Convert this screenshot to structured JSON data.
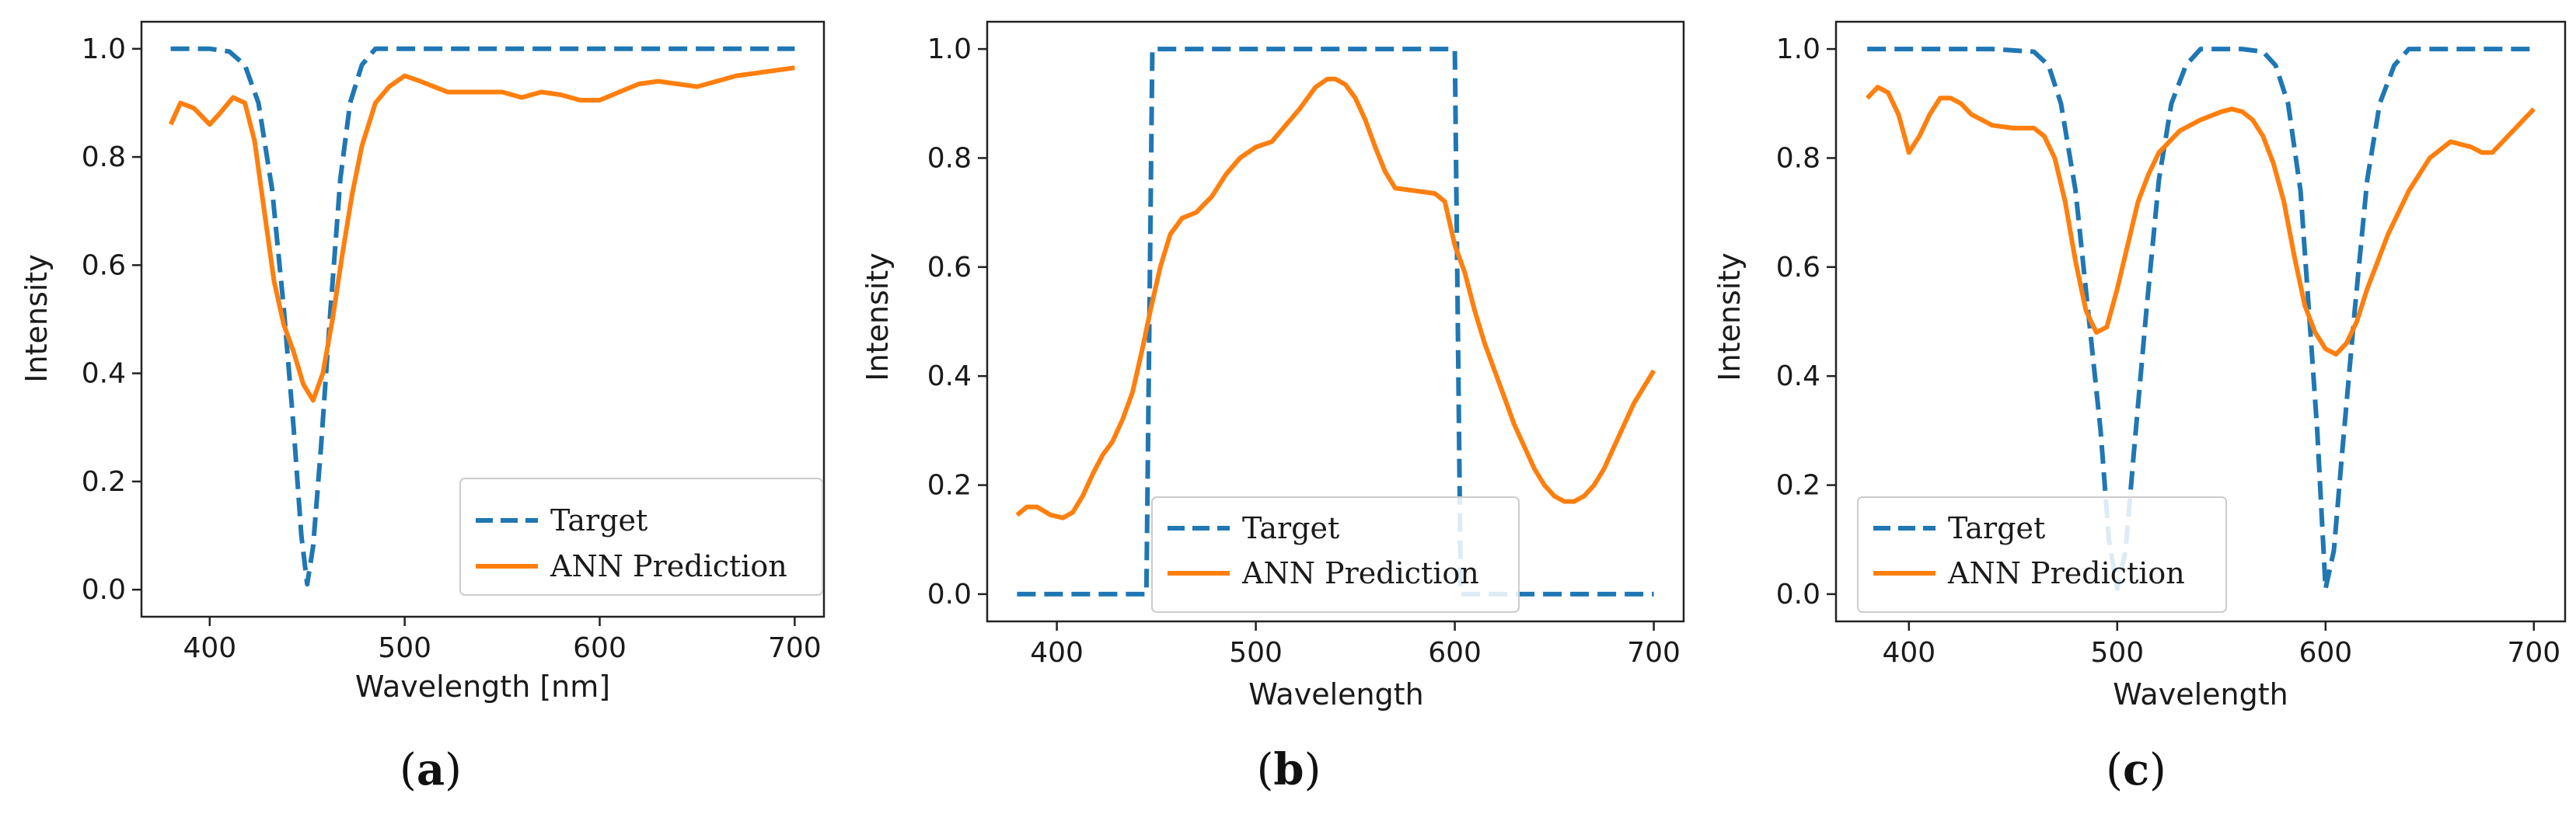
{
  "colors": {
    "target": "#1f77b4",
    "prediction": "#ff7f0e",
    "axis": "#222222"
  },
  "chart_data": [
    {
      "type": "line",
      "panel_letter": "a",
      "xlabel": "Wavelength [nm]",
      "ylabel": "Intensity",
      "xlim": [
        365,
        715
      ],
      "ylim": [
        -0.05,
        1.05
      ],
      "xticks": [
        400,
        500,
        600,
        700
      ],
      "yticks": [
        0.0,
        0.2,
        0.4,
        0.6,
        0.8,
        1.0
      ],
      "xtick_labels": [
        "400",
        "500",
        "600",
        "700"
      ],
      "ytick_labels": [
        "0.0",
        "0.2",
        "0.4",
        "0.6",
        "0.8",
        "1.0"
      ],
      "legend_position": "lower-right",
      "series": [
        {
          "name": "Target",
          "style": "dashed",
          "x": [
            380,
            400,
            410,
            418,
            425,
            432,
            438,
            443,
            447,
            450,
            453,
            457,
            462,
            467,
            472,
            478,
            485,
            500,
            550,
            600,
            650,
            700
          ],
          "y": [
            1.0,
            1.0,
            0.995,
            0.97,
            0.9,
            0.74,
            0.52,
            0.3,
            0.1,
            0.01,
            0.08,
            0.26,
            0.52,
            0.76,
            0.9,
            0.97,
            1.0,
            1.0,
            1.0,
            1.0,
            1.0,
            1.0
          ]
        },
        {
          "name": "ANN Prediction",
          "style": "solid",
          "x": [
            380,
            385,
            392,
            400,
            405,
            412,
            418,
            423,
            428,
            433,
            438,
            443,
            448,
            453,
            458,
            463,
            468,
            473,
            478,
            485,
            492,
            500,
            508,
            515,
            522,
            530,
            540,
            550,
            560,
            570,
            580,
            590,
            600,
            610,
            620,
            630,
            640,
            650,
            660,
            670,
            680,
            690,
            700
          ],
          "y": [
            0.86,
            0.9,
            0.89,
            0.86,
            0.88,
            0.91,
            0.9,
            0.83,
            0.7,
            0.57,
            0.49,
            0.44,
            0.38,
            0.35,
            0.4,
            0.5,
            0.62,
            0.73,
            0.82,
            0.9,
            0.93,
            0.95,
            0.94,
            0.93,
            0.92,
            0.92,
            0.92,
            0.92,
            0.91,
            0.92,
            0.915,
            0.905,
            0.905,
            0.92,
            0.935,
            0.94,
            0.935,
            0.93,
            0.94,
            0.95,
            0.955,
            0.96,
            0.965
          ]
        }
      ]
    },
    {
      "type": "line",
      "panel_letter": "b",
      "xlabel": "Wavelength",
      "ylabel": "Intensity",
      "xlim": [
        365,
        715
      ],
      "ylim": [
        -0.05,
        1.05
      ],
      "xticks": [
        400,
        500,
        600,
        700
      ],
      "yticks": [
        0.0,
        0.2,
        0.4,
        0.6,
        0.8,
        1.0
      ],
      "xtick_labels": [
        "400",
        "500",
        "600",
        "700"
      ],
      "ytick_labels": [
        "0.0",
        "0.2",
        "0.4",
        "0.6",
        "0.8",
        "1.0"
      ],
      "legend_position": "lower-center",
      "series": [
        {
          "name": "Target",
          "style": "dashed",
          "x": [
            380,
            445,
            448,
            600,
            603,
            700
          ],
          "y": [
            0.0,
            0.0,
            1.0,
            1.0,
            0.0,
            0.0
          ]
        },
        {
          "name": "ANN Prediction",
          "style": "solid",
          "x": [
            380,
            385,
            390,
            397,
            403,
            408,
            413,
            418,
            423,
            428,
            433,
            438,
            443,
            447,
            452,
            457,
            463,
            470,
            478,
            485,
            492,
            500,
            508,
            515,
            522,
            530,
            536,
            540,
            545,
            550,
            555,
            560,
            565,
            570,
            580,
            590,
            595,
            600,
            605,
            610,
            615,
            620,
            625,
            630,
            635,
            640,
            645,
            650,
            655,
            660,
            665,
            670,
            675,
            680,
            685,
            690,
            695,
            700
          ],
          "y": [
            0.145,
            0.16,
            0.16,
            0.145,
            0.14,
            0.15,
            0.18,
            0.22,
            0.255,
            0.28,
            0.32,
            0.37,
            0.45,
            0.52,
            0.6,
            0.66,
            0.69,
            0.7,
            0.73,
            0.77,
            0.8,
            0.82,
            0.83,
            0.86,
            0.89,
            0.93,
            0.945,
            0.945,
            0.935,
            0.91,
            0.87,
            0.82,
            0.775,
            0.745,
            0.74,
            0.735,
            0.72,
            0.64,
            0.59,
            0.52,
            0.46,
            0.41,
            0.36,
            0.31,
            0.27,
            0.23,
            0.2,
            0.18,
            0.17,
            0.17,
            0.18,
            0.2,
            0.23,
            0.27,
            0.31,
            0.35,
            0.38,
            0.41
          ]
        }
      ]
    },
    {
      "type": "line",
      "panel_letter": "c",
      "xlabel": "Wavelength",
      "ylabel": "Intensity",
      "xlim": [
        365,
        715
      ],
      "ylim": [
        -0.05,
        1.05
      ],
      "xticks": [
        400,
        500,
        600,
        700
      ],
      "yticks": [
        0.0,
        0.2,
        0.4,
        0.6,
        0.8,
        1.0
      ],
      "xtick_labels": [
        "400",
        "500",
        "600",
        "700"
      ],
      "ytick_labels": [
        "0.0",
        "0.2",
        "0.4",
        "0.6",
        "0.8",
        "1.0"
      ],
      "legend_position": "lower-left",
      "series": [
        {
          "name": "Target",
          "style": "dashed",
          "x": [
            380,
            440,
            460,
            467,
            473,
            480,
            486,
            492,
            496,
            500,
            504,
            508,
            514,
            520,
            526,
            533,
            540,
            550,
            560,
            570,
            576,
            582,
            588,
            592,
            596,
            600,
            604,
            608,
            614,
            620,
            626,
            633,
            640,
            700
          ],
          "y": [
            1.0,
            1.0,
            0.995,
            0.97,
            0.9,
            0.74,
            0.52,
            0.3,
            0.1,
            0.01,
            0.08,
            0.26,
            0.52,
            0.76,
            0.9,
            0.97,
            1.0,
            1.0,
            1.0,
            0.995,
            0.97,
            0.9,
            0.74,
            0.52,
            0.3,
            0.01,
            0.08,
            0.26,
            0.52,
            0.76,
            0.9,
            0.97,
            1.0,
            1.0
          ]
        },
        {
          "name": "ANN Prediction",
          "style": "solid",
          "x": [
            380,
            385,
            390,
            395,
            400,
            405,
            410,
            415,
            420,
            425,
            430,
            440,
            450,
            460,
            465,
            470,
            475,
            480,
            485,
            490,
            495,
            500,
            505,
            510,
            515,
            520,
            530,
            540,
            550,
            555,
            560,
            565,
            570,
            575,
            580,
            585,
            590,
            595,
            600,
            605,
            610,
            615,
            620,
            630,
            640,
            650,
            660,
            670,
            675,
            680,
            685,
            690,
            695,
            700
          ],
          "y": [
            0.91,
            0.93,
            0.92,
            0.88,
            0.81,
            0.84,
            0.88,
            0.91,
            0.91,
            0.9,
            0.88,
            0.86,
            0.855,
            0.855,
            0.84,
            0.8,
            0.72,
            0.61,
            0.52,
            0.48,
            0.49,
            0.56,
            0.64,
            0.72,
            0.77,
            0.81,
            0.85,
            0.87,
            0.885,
            0.89,
            0.885,
            0.87,
            0.84,
            0.79,
            0.72,
            0.62,
            0.53,
            0.48,
            0.45,
            0.44,
            0.46,
            0.5,
            0.56,
            0.66,
            0.74,
            0.8,
            0.83,
            0.82,
            0.81,
            0.81,
            0.83,
            0.85,
            0.87,
            0.89
          ]
        }
      ]
    }
  ]
}
